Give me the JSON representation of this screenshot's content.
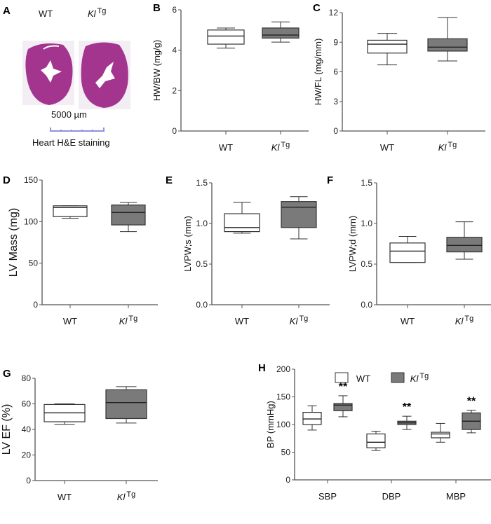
{
  "panel_a": {
    "label": "A",
    "wt_label": "WT",
    "kl_label": "Kl",
    "kl_superscript": "Tg",
    "scale_bar": "5000 µm",
    "caption": "Heart H&E staining",
    "stain_color": "#a3358f"
  },
  "colors": {
    "wt_fill": "#ffffff",
    "kl_fill": "#7a7a7a",
    "stroke": "#333333"
  },
  "chart_data": [
    {
      "panel": "B",
      "type": "box",
      "ylabel": "HW/BW (mg/g)",
      "ylim": [
        0,
        6
      ],
      "yticks": [
        0,
        2,
        4,
        6
      ],
      "categories": [
        "WT",
        "Kl Tg"
      ],
      "boxes": [
        {
          "group": "WT",
          "min": 4.1,
          "q1": 4.3,
          "median": 4.7,
          "q3": 5.0,
          "max": 5.1
        },
        {
          "group": "Kl Tg",
          "min": 4.4,
          "q1": 4.6,
          "median": 4.75,
          "q3": 5.1,
          "max": 5.4
        }
      ]
    },
    {
      "panel": "C",
      "type": "box",
      "ylabel": "HW/FL (mg/mm)",
      "ylim": [
        0,
        12
      ],
      "yticks": [
        0,
        3,
        6,
        9,
        12
      ],
      "categories": [
        "WT",
        "Kl Tg"
      ],
      "boxes": [
        {
          "group": "WT",
          "min": 6.7,
          "q1": 7.9,
          "median": 8.8,
          "q3": 9.2,
          "max": 9.9
        },
        {
          "group": "Kl Tg",
          "min": 7.1,
          "q1": 8.1,
          "median": 8.5,
          "q3": 9.35,
          "max": 11.5
        }
      ]
    },
    {
      "panel": "D",
      "type": "box",
      "ylabel": "LV Mass (mg)",
      "ylim": [
        0,
        150
      ],
      "yticks": [
        0,
        50,
        100,
        150
      ],
      "categories": [
        "WT",
        "Kl Tg"
      ],
      "boxes": [
        {
          "group": "WT",
          "min": 104,
          "q1": 106,
          "median": 117,
          "q3": 119,
          "max": 119
        },
        {
          "group": "Kl Tg",
          "min": 88,
          "q1": 96,
          "median": 111,
          "q3": 120,
          "max": 123
        }
      ]
    },
    {
      "panel": "E",
      "type": "box",
      "ylabel": "LVPW;s (mm)",
      "ylim": [
        0,
        1.5
      ],
      "yticks": [
        "0.0",
        "0.5",
        "1.0",
        "1.5"
      ],
      "categories": [
        "WT",
        "Kl Tg"
      ],
      "boxes": [
        {
          "group": "WT",
          "min": 0.88,
          "q1": 0.9,
          "median": 0.95,
          "q3": 1.12,
          "max": 1.26
        },
        {
          "group": "Kl Tg",
          "min": 0.81,
          "q1": 0.95,
          "median": 1.2,
          "q3": 1.27,
          "max": 1.33
        }
      ]
    },
    {
      "panel": "F",
      "type": "box",
      "ylabel": "LVPW;d (mm)",
      "ylim": [
        0,
        1.5
      ],
      "yticks": [
        "0.0",
        "0.5",
        "1.0",
        "1.5"
      ],
      "categories": [
        "WT",
        "Kl Tg"
      ],
      "boxes": [
        {
          "group": "WT",
          "min": 0.52,
          "q1": 0.52,
          "median": 0.66,
          "q3": 0.76,
          "max": 0.84
        },
        {
          "group": "Kl Tg",
          "min": 0.56,
          "q1": 0.65,
          "median": 0.73,
          "q3": 0.83,
          "max": 1.02
        }
      ]
    },
    {
      "panel": "G",
      "type": "box",
      "ylabel": "LV EF (%)",
      "ylim": [
        0,
        80
      ],
      "yticks": [
        0,
        20,
        40,
        60,
        80
      ],
      "categories": [
        "WT",
        "Kl Tg"
      ],
      "boxes": [
        {
          "group": "WT",
          "min": 44,
          "q1": 46,
          "median": 53,
          "q3": 59.5,
          "max": 60
        },
        {
          "group": "Kl Tg",
          "min": 45,
          "q1": 48.5,
          "median": 61,
          "q3": 71,
          "max": 73.5
        }
      ]
    },
    {
      "panel": "H",
      "type": "box",
      "ylabel": "BP (mmHg)",
      "ylim": [
        0,
        200
      ],
      "yticks": [
        0,
        50,
        100,
        150,
        200
      ],
      "categories": [
        "SBP",
        "DBP",
        "MBP"
      ],
      "legend": [
        "WT",
        "Kl Tg"
      ],
      "legend_position": "top",
      "series": [
        {
          "name": "WT",
          "boxes": [
            {
              "min": 90,
              "q1": 100,
              "median": 110,
              "q3": 122,
              "max": 134
            },
            {
              "min": 53,
              "q1": 58,
              "median": 68,
              "q3": 83,
              "max": 88
            },
            {
              "min": 68,
              "q1": 76,
              "median": 83,
              "q3": 86,
              "max": 102
            }
          ]
        },
        {
          "name": "Kl Tg",
          "boxes": [
            {
              "min": 114,
              "q1": 125,
              "median": 135,
              "q3": 138,
              "max": 152,
              "annotation": "**"
            },
            {
              "min": 91,
              "q1": 100,
              "median": 103,
              "q3": 106,
              "max": 115,
              "annotation": "**"
            },
            {
              "min": 85,
              "q1": 91,
              "median": 106,
              "q3": 121,
              "max": 126,
              "annotation": "**"
            }
          ]
        }
      ]
    }
  ]
}
